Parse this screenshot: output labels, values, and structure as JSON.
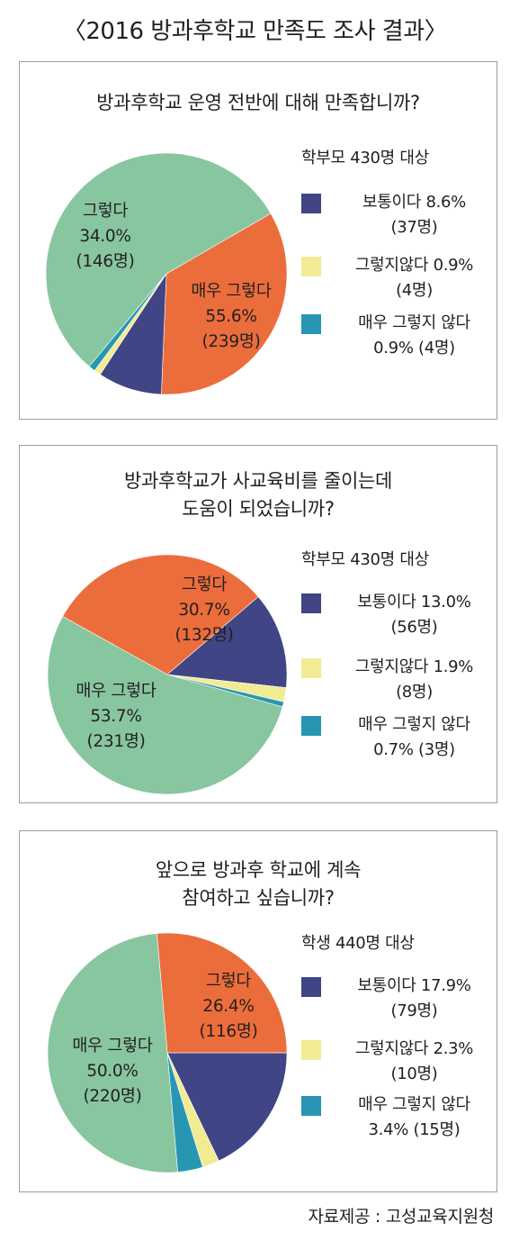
{
  "title": "〈2016 방과후학교 만족도 조사 결과〉",
  "source": "자료제공 : 고성교육지원청",
  "colors": {
    "very_satisfied": "#88c6a0",
    "satisfied": "#ec6d3c",
    "neutral": "#3f4585",
    "dissatisfied": "#f1ec93",
    "very_dissatisfied": "#2896b2"
  },
  "chart_data": [
    {
      "type": "pie",
      "title": "방과후학교 운영 전반에 대해 만족합니까?",
      "subtitle": "학부모 430명 대상",
      "slices": [
        {
          "name": "매우 그렇다",
          "percent": 55.6,
          "count": 239,
          "label_lines": [
            "매우 그렇다",
            "55.6%",
            "(239명)"
          ]
        },
        {
          "name": "그렇다",
          "percent": 34.0,
          "count": 146,
          "label_lines": [
            "그렇다",
            "34.0%",
            "(146명)"
          ]
        },
        {
          "name": "보통이다",
          "percent": 8.6,
          "count": 37,
          "legend_lines": [
            "보통이다 8.6%",
            "(37명)"
          ]
        },
        {
          "name": "그렇지않다",
          "percent": 0.9,
          "count": 4,
          "legend_lines": [
            "그렇지않다 0.9%",
            "(4명)"
          ]
        },
        {
          "name": "매우 그렇지 않다",
          "percent": 0.9,
          "count": 4,
          "legend_lines": [
            "매우 그렇지 않다",
            "0.9% (4명)"
          ]
        }
      ]
    },
    {
      "type": "pie",
      "title": "방과후학교가 사교육비를 줄이는데 도움이 되었습니까?",
      "title_lines": [
        "방과후학교가 사교육비를 줄이는데",
        "도움이 되었습니까?"
      ],
      "subtitle": "학부모 430명 대상",
      "slices": [
        {
          "name": "매우 그렇다",
          "percent": 53.7,
          "count": 231,
          "label_lines": [
            "매우 그렇다",
            "53.7%",
            "(231명)"
          ]
        },
        {
          "name": "그렇다",
          "percent": 30.7,
          "count": 132,
          "label_lines": [
            "그렇다",
            "30.7%",
            "(132명)"
          ]
        },
        {
          "name": "보통이다",
          "percent": 13.0,
          "count": 56,
          "legend_lines": [
            "보통이다 13.0%",
            "(56명)"
          ]
        },
        {
          "name": "그렇지않다",
          "percent": 1.9,
          "count": 8,
          "legend_lines": [
            "그렇지않다 1.9%",
            "(8명)"
          ]
        },
        {
          "name": "매우 그렇지 않다",
          "percent": 0.7,
          "count": 3,
          "legend_lines": [
            "매우 그렇지 않다",
            "0.7% (3명)"
          ]
        }
      ]
    },
    {
      "type": "pie",
      "title": "앞으로 방과후 학교에 계속 참여하고 싶습니까?",
      "title_lines": [
        "앞으로 방과후 학교에 계속",
        "참여하고 싶습니까?"
      ],
      "subtitle": "학생 440명 대상",
      "slices": [
        {
          "name": "매우 그렇다",
          "percent": 50.0,
          "count": 220,
          "label_lines": [
            "매우 그렇다",
            "50.0%",
            "(220명)"
          ]
        },
        {
          "name": "그렇다",
          "percent": 26.4,
          "count": 116,
          "label_lines": [
            "그렇다",
            "26.4%",
            "(116명)"
          ]
        },
        {
          "name": "보통이다",
          "percent": 17.9,
          "count": 79,
          "legend_lines": [
            "보통이다 17.9%",
            "(79명)"
          ]
        },
        {
          "name": "그렇지않다",
          "percent": 2.3,
          "count": 10,
          "legend_lines": [
            "그렇지않다 2.3%",
            "(10명)"
          ]
        },
        {
          "name": "매우 그렇지 않다",
          "percent": 3.4,
          "count": 15,
          "legend_lines": [
            "매우 그렇지 않다",
            "3.4% (15명)"
          ]
        }
      ]
    }
  ]
}
